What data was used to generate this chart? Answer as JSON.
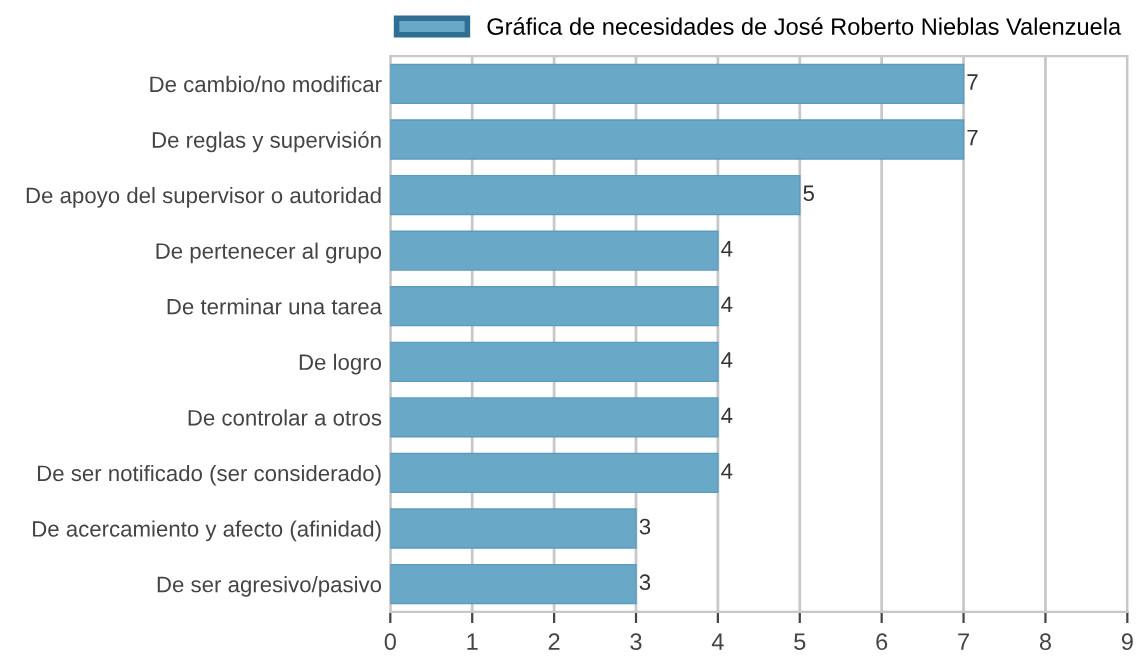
{
  "chart_data": {
    "type": "bar",
    "orientation": "horizontal",
    "categories": [
      "De cambio/no modificar",
      "De reglas y supervisión",
      "De apoyo del supervisor o autoridad",
      "De pertenecer al grupo",
      "De terminar una tarea",
      "De logro",
      "De controlar a otros",
      "De ser notificado (ser considerado)",
      "De acercamiento y afecto (afinidad)",
      "De ser agresivo/pasivo"
    ],
    "series": [
      {
        "name": "Gráfica de necesidades de José Roberto Nieblas Valenzuela",
        "color": "#6aa8c8",
        "values": [
          7,
          7,
          5,
          4,
          4,
          4,
          4,
          4,
          3,
          3
        ]
      }
    ],
    "xlim": [
      0,
      9
    ],
    "xticks": [
      0,
      1,
      2,
      3,
      4,
      5,
      6,
      7,
      8,
      9
    ],
    "grid": "x",
    "legend": "top",
    "data_labels": true
  }
}
